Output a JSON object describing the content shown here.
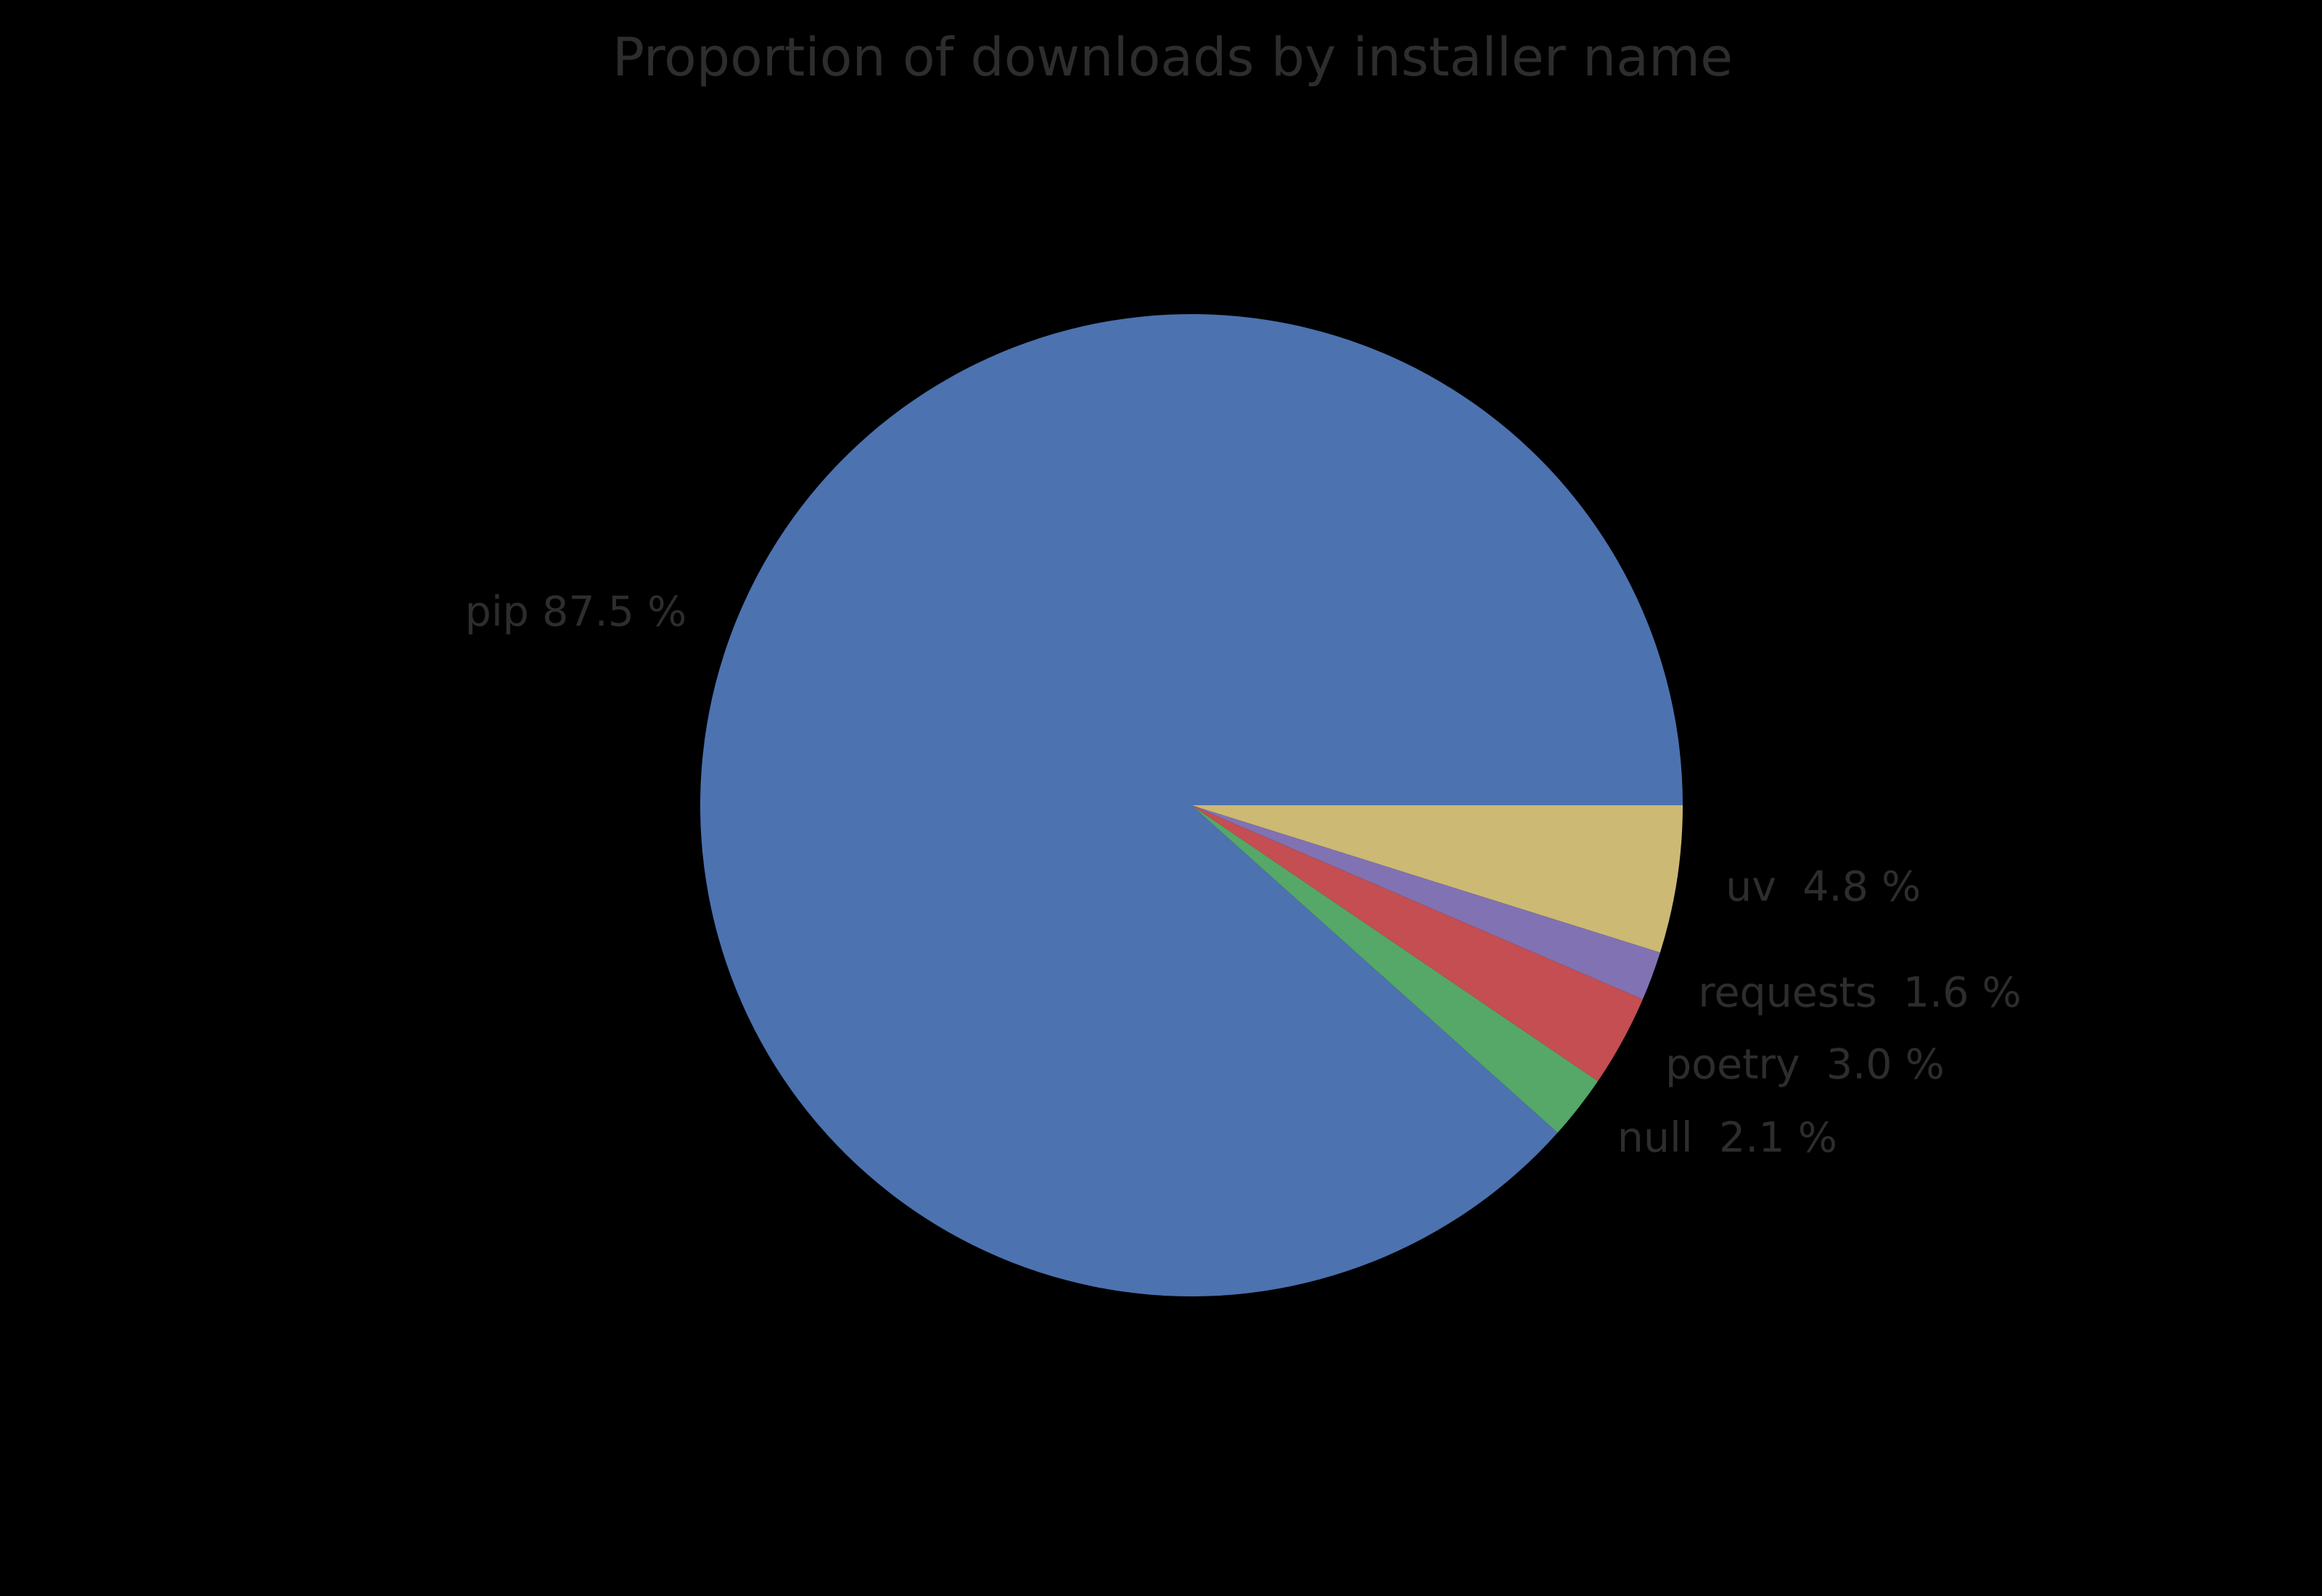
{
  "chart_data": {
    "type": "pie",
    "title": "Proportion of downloads by installer name",
    "start": "east",
    "direction": "clockwise",
    "legend": "none",
    "slices": [
      {
        "label": "uv",
        "value": 4.8,
        "display": "uv  4.8 %",
        "color": "#CCB974"
      },
      {
        "label": "requests",
        "value": 1.6,
        "display": "requests  1.6 %",
        "color": "#8172B3"
      },
      {
        "label": "poetry",
        "value": 3.0,
        "display": "poetry  3.0 %",
        "color": "#C44E52"
      },
      {
        "label": "null",
        "value": 2.1,
        "display": "null  2.1 %",
        "color": "#55A868"
      },
      {
        "label": "pip",
        "value": 87.5,
        "display": "pip 87.5 %",
        "color": "#4C72B0"
      }
    ],
    "colors": {
      "text": "#2d2d2d",
      "background": "#000000"
    }
  }
}
